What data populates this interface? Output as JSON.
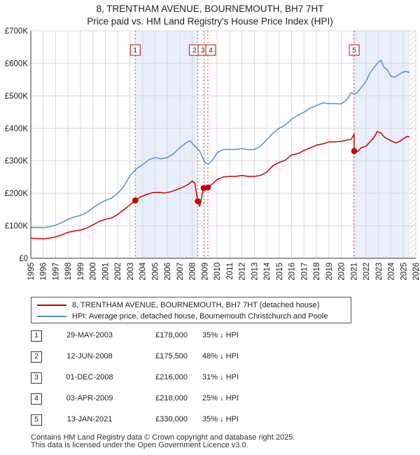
{
  "chart_data": {
    "type": "line",
    "title": "8, TRENTHAM AVENUE, BOURNEMOUTH, BH7 7HT",
    "subtitle": "Price paid vs. HM Land Registry's House Price Index (HPI)",
    "xlim": [
      1995,
      2026
    ],
    "ylim": [
      0,
      700000
    ],
    "x_ticks": [
      "1995",
      "1996",
      "1997",
      "1998",
      "1999",
      "2000",
      "2001",
      "2002",
      "2003",
      "2004",
      "2005",
      "2006",
      "2007",
      "2008",
      "2009",
      "2010",
      "2011",
      "2012",
      "2013",
      "2014",
      "2015",
      "2016",
      "2017",
      "2018",
      "2019",
      "2020",
      "2021",
      "2022",
      "2023",
      "2024",
      "2025",
      "2026"
    ],
    "y_ticks": [
      {
        "value": 0,
        "label": "£0"
      },
      {
        "value": 100000,
        "label": "£100K"
      },
      {
        "value": 200000,
        "label": "£200K"
      },
      {
        "value": 300000,
        "label": "£300K"
      },
      {
        "value": 400000,
        "label": "£400K"
      },
      {
        "value": 500000,
        "label": "£500K"
      },
      {
        "value": 600000,
        "label": "£600K"
      },
      {
        "value": 700000,
        "label": "£700K"
      }
    ],
    "shaded_regions": [
      [
        2003.41,
        2008.45
      ],
      [
        2021.04,
        2025.5
      ]
    ],
    "hatched_from": 2025.5,
    "series": [
      {
        "name": "8, TRENTHAM AVENUE, BOURNEMOUTH, BH7 7HT (detached house)",
        "color": "#cc0000",
        "x": [
          1995.0,
          1995.5,
          1996.0,
          1996.5,
          1997.0,
          1997.5,
          1998.0,
          1998.5,
          1999.0,
          1999.5,
          2000.0,
          2000.5,
          2001.0,
          2001.5,
          2002.0,
          2002.5,
          2003.0,
          2003.41,
          2003.8,
          2004.3,
          2004.8,
          2005.3,
          2005.8,
          2006.3,
          2006.8,
          2007.3,
          2007.7,
          2008.0,
          2008.2,
          2008.44,
          2008.45,
          2008.6,
          2008.8,
          2008.92,
          2009.1,
          2009.26,
          2009.6,
          2010.0,
          2010.5,
          2011.0,
          2011.5,
          2012.0,
          2012.5,
          2013.0,
          2013.5,
          2014.0,
          2014.5,
          2015.0,
          2015.5,
          2016.0,
          2016.5,
          2017.0,
          2017.5,
          2018.0,
          2018.5,
          2019.0,
          2019.5,
          2020.0,
          2020.5,
          2020.8,
          2021.03,
          2021.04,
          2021.3,
          2021.6,
          2022.0,
          2022.3,
          2022.6,
          2022.9,
          2023.2,
          2023.5,
          2023.8,
          2024.1,
          2024.4,
          2024.7,
          2025.0,
          2025.3,
          2025.5
        ],
        "y": [
          62000,
          61000,
          60000,
          62000,
          66000,
          72000,
          80000,
          84000,
          87000,
          93000,
          103000,
          113000,
          120000,
          124000,
          135000,
          150000,
          165000,
          178000,
          188000,
          196000,
          202000,
          203000,
          201000,
          205000,
          212000,
          220000,
          228000,
          238000,
          232000,
          175500,
          172000,
          160000,
          196000,
          216000,
          213000,
          218000,
          228000,
          242000,
          250000,
          252000,
          252000,
          255000,
          252000,
          252000,
          255000,
          265000,
          285000,
          295000,
          302000,
          318000,
          322000,
          332000,
          340000,
          348000,
          352000,
          358000,
          358000,
          360000,
          364000,
          366000,
          382000,
          330000,
          328000,
          340000,
          345000,
          358000,
          370000,
          390000,
          385000,
          372000,
          366000,
          360000,
          355000,
          360000,
          368000,
          375000,
          373000
        ]
      },
      {
        "name": "HPI: Average price, detached house, Bournemouth Christchurch and Poole",
        "color": "#5b8fcf",
        "x": [
          1995.0,
          1995.5,
          1996.0,
          1996.5,
          1997.0,
          1997.5,
          1998.0,
          1998.5,
          1999.0,
          1999.5,
          2000.0,
          2000.5,
          2001.0,
          2001.5,
          2002.0,
          2002.5,
          2003.0,
          2003.5,
          2004.0,
          2004.5,
          2005.0,
          2005.5,
          2006.0,
          2006.5,
          2007.0,
          2007.5,
          2007.8,
          2008.2,
          2008.6,
          2009.0,
          2009.3,
          2009.7,
          2010.0,
          2010.5,
          2011.0,
          2011.5,
          2012.0,
          2012.5,
          2013.0,
          2013.5,
          2014.0,
          2014.5,
          2015.0,
          2015.5,
          2016.0,
          2016.5,
          2017.0,
          2017.5,
          2018.0,
          2018.5,
          2019.0,
          2019.5,
          2020.0,
          2020.5,
          2020.8,
          2021.0,
          2021.3,
          2021.6,
          2022.0,
          2022.3,
          2022.6,
          2022.9,
          2023.2,
          2023.4,
          2023.7,
          2024.0,
          2024.3,
          2024.6,
          2024.9,
          2025.2,
          2025.5
        ],
        "y": [
          95000,
          95000,
          94000,
          97000,
          102000,
          110000,
          120000,
          127000,
          132000,
          141000,
          155000,
          168000,
          178000,
          185000,
          200000,
          222000,
          255000,
          275000,
          288000,
          303000,
          310000,
          306000,
          310000,
          322000,
          340000,
          355000,
          362000,
          345000,
          330000,
          295000,
          290000,
          305000,
          325000,
          335000,
          335000,
          335000,
          338000,
          334000,
          335000,
          345000,
          365000,
          385000,
          400000,
          410000,
          428000,
          440000,
          450000,
          462000,
          470000,
          478000,
          476000,
          476000,
          475000,
          490000,
          510000,
          505000,
          510000,
          525000,
          545000,
          570000,
          585000,
          600000,
          610000,
          590000,
          580000,
          560000,
          557000,
          565000,
          572000,
          575000,
          572000
        ]
      }
    ],
    "markers": [
      {
        "label": "1",
        "x": 2003.41,
        "y": 178000
      },
      {
        "label": "2",
        "x": 2008.45,
        "y": 175500
      },
      {
        "label": "3",
        "x": 2008.92,
        "y": 216000
      },
      {
        "label": "4",
        "x": 2009.26,
        "y": 218000
      },
      {
        "label": "5",
        "x": 2021.04,
        "y": 330000
      }
    ]
  },
  "legend": {
    "property_label": "8, TRENTHAM AVENUE, BOURNEMOUTH, BH7 7HT (detached house)",
    "hpi_label": "HPI: Average price, detached house, Bournemouth Christchurch and Poole"
  },
  "sales": [
    {
      "num": "1",
      "date": "29-MAY-2003",
      "price": "£178,000",
      "hpi": "35% ↓ HPI"
    },
    {
      "num": "2",
      "date": "12-JUN-2008",
      "price": "£175,500",
      "hpi": "48% ↓ HPI"
    },
    {
      "num": "3",
      "date": "01-DEC-2008",
      "price": "£216,000",
      "hpi": "31% ↓ HPI"
    },
    {
      "num": "4",
      "date": "03-APR-2009",
      "price": "£218,000",
      "hpi": "25% ↓ HPI"
    },
    {
      "num": "5",
      "date": "13-JAN-2021",
      "price": "£330,000",
      "hpi": "35% ↓ HPI"
    }
  ],
  "footer": {
    "line1": "Contains HM Land Registry data © Crown copyright and database right 2025.",
    "line2": "This data is licensed under the Open Government Licence v3.0."
  },
  "colors": {
    "property": "#cc0000",
    "hpi": "#5b8fcf",
    "shade": "#e8eefa"
  }
}
